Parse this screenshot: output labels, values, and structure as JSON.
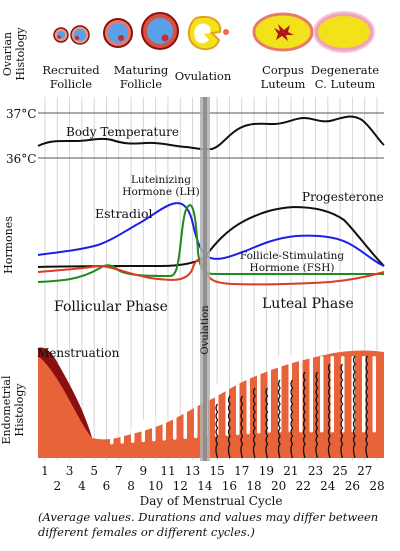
{
  "histology": {
    "ovarian_axis": [
      "Ovarian",
      "Histology"
    ],
    "stages": [
      {
        "line1": "Recruited",
        "line2": "Follicle"
      },
      {
        "line1": "Maturing",
        "line2": "Follicle"
      },
      {
        "line1": "Ovulation",
        "line2": ""
      },
      {
        "line1": "Corpus",
        "line2": "Luteum"
      },
      {
        "line1": "Degenerate",
        "line2": "C. Luteum"
      }
    ],
    "endometrial_axis": [
      "Endometrial",
      "Histology"
    ],
    "menstruation": "Menstruation"
  },
  "temperature": {
    "label": "Body Temperature",
    "high": "37°C",
    "low": "36°C"
  },
  "hormones": {
    "axis": "Hormones",
    "estradiol": "Estradiol",
    "lh_line1": "Luteinizing",
    "lh_line2": "Hormone (LH)",
    "progesterone": "Progesterone",
    "fsh_line1": "Follicle-Stimulating",
    "fsh_line2": "Hormone (FSH)"
  },
  "phases": {
    "follicular": "Follicular Phase",
    "luteal": "Luteal Phase",
    "ovulation": "Ovulation"
  },
  "axis": {
    "title": "Day of Menstrual Cycle",
    "days": [
      "1",
      "2",
      "3",
      "4",
      "5",
      "6",
      "7",
      "8",
      "9",
      "10",
      "11",
      "12",
      "13",
      "14",
      "15",
      "16",
      "17",
      "18",
      "19",
      "20",
      "21",
      "22",
      "23",
      "24",
      "25",
      "26",
      "27",
      "28"
    ]
  },
  "caption": "(Average values. Durations and values may differ between different females or different cycles.)",
  "colors": {
    "estradiol": "#1f1fe6",
    "lh": "#1f8a1f",
    "progesterone": "#111111",
    "fsh": "#e03a1e",
    "endometrium": "#e8623a",
    "menstrual": "#8a1010",
    "follicle_fluid": "#5aa0e8",
    "corpus_luteum": "#f2e21a"
  }
}
